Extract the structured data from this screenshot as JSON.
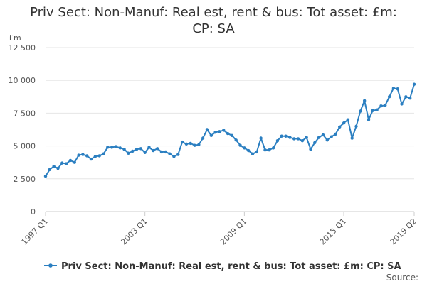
{
  "chart_data": {
    "type": "line",
    "title_lines": [
      "Priv Sect: Non-Manuf: Real est, rent & bus: Tot asset: £m:",
      "CP: SA"
    ],
    "unit_label": "£m",
    "ylim": [
      0,
      12500
    ],
    "y_ticks": [
      0,
      2500,
      5000,
      7500,
      10000,
      12500
    ],
    "y_tick_labels": [
      "0",
      "2 500",
      "5 000",
      "7 500",
      "10 000",
      "12 500"
    ],
    "x_ticks": [
      0,
      24,
      48,
      72,
      89
    ],
    "x_tick_labels": [
      "1997 Q1",
      "2003 Q1",
      "2009 Q1",
      "2015 Q1",
      "2019 Q2"
    ],
    "grid": "horizontal",
    "legend_position": "bottom",
    "source_label": "Source:",
    "colors": {
      "series": "#2b7fc1",
      "grid": "#e6e6e6",
      "axis": "#cccccc"
    },
    "categories": [
      "1997 Q1",
      "1997 Q2",
      "1997 Q3",
      "1997 Q4",
      "1998 Q1",
      "1998 Q2",
      "1998 Q3",
      "1998 Q4",
      "1999 Q1",
      "1999 Q2",
      "1999 Q3",
      "1999 Q4",
      "2000 Q1",
      "2000 Q2",
      "2000 Q3",
      "2000 Q4",
      "2001 Q1",
      "2001 Q2",
      "2001 Q3",
      "2001 Q4",
      "2002 Q1",
      "2002 Q2",
      "2002 Q3",
      "2002 Q4",
      "2003 Q1",
      "2003 Q2",
      "2003 Q3",
      "2003 Q4",
      "2004 Q1",
      "2004 Q2",
      "2004 Q3",
      "2004 Q4",
      "2005 Q1",
      "2005 Q2",
      "2005 Q3",
      "2005 Q4",
      "2006 Q1",
      "2006 Q2",
      "2006 Q3",
      "2006 Q4",
      "2007 Q1",
      "2007 Q2",
      "2007 Q3",
      "2007 Q4",
      "2008 Q1",
      "2008 Q2",
      "2008 Q3",
      "2008 Q4",
      "2009 Q1",
      "2009 Q2",
      "2009 Q3",
      "2009 Q4",
      "2010 Q1",
      "2010 Q2",
      "2010 Q3",
      "2010 Q4",
      "2011 Q1",
      "2011 Q2",
      "2011 Q3",
      "2011 Q4",
      "2012 Q1",
      "2012 Q2",
      "2012 Q3",
      "2012 Q4",
      "2013 Q1",
      "2013 Q2",
      "2013 Q3",
      "2013 Q4",
      "2014 Q1",
      "2014 Q2",
      "2014 Q3",
      "2014 Q4",
      "2015 Q1",
      "2015 Q2",
      "2015 Q3",
      "2015 Q4",
      "2016 Q1",
      "2016 Q2",
      "2016 Q3",
      "2016 Q4",
      "2017 Q1",
      "2017 Q2",
      "2017 Q3",
      "2017 Q4",
      "2018 Q1",
      "2018 Q2",
      "2018 Q3",
      "2018 Q4",
      "2019 Q1",
      "2019 Q2"
    ],
    "series": [
      {
        "name": "Priv Sect: Non-Manuf: Real est, rent & bus: Tot asset: £m: CP: SA",
        "values": [
          2700,
          3200,
          3450,
          3300,
          3700,
          3650,
          3900,
          3750,
          4300,
          4350,
          4250,
          4000,
          4200,
          4250,
          4400,
          4900,
          4900,
          4950,
          4850,
          4750,
          4450,
          4600,
          4750,
          4800,
          4500,
          4900,
          4650,
          4800,
          4550,
          4550,
          4400,
          4200,
          4350,
          5300,
          5150,
          5200,
          5050,
          5100,
          5600,
          6250,
          5800,
          6050,
          6100,
          6200,
          5950,
          5800,
          5450,
          5050,
          4850,
          4650,
          4400,
          4550,
          5600,
          4700,
          4700,
          4850,
          5400,
          5750,
          5750,
          5650,
          5550,
          5550,
          5400,
          5650,
          4750,
          5250,
          5650,
          5850,
          5450,
          5700,
          5900,
          6450,
          6750,
          7000,
          5600,
          6500,
          7650,
          8450,
          7000,
          7700,
          7750,
          8050,
          8100,
          8750,
          9400,
          9350,
          8200,
          8750,
          8650,
          9700
        ]
      }
    ]
  }
}
